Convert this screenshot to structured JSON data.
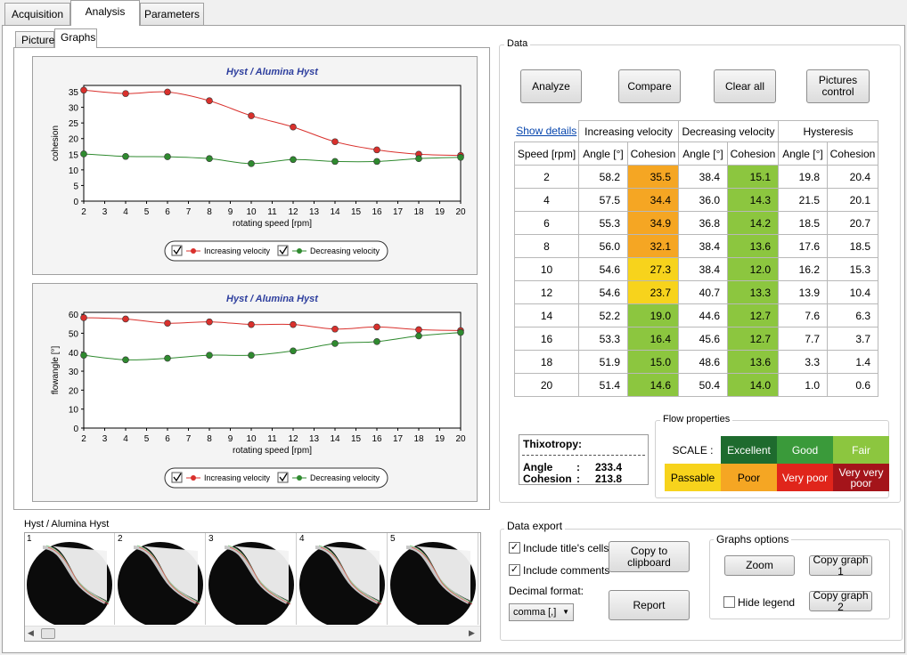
{
  "main_tabs": [
    "Acquisition",
    "Analysis",
    "Parameters"
  ],
  "sub_tabs": [
    "Picture",
    "Graphs"
  ],
  "graphs": [
    {
      "title": "Hyst / Alumina Hyst",
      "xlabel": "rotating speed [rpm]",
      "ylabel": "cohesion",
      "yticks": [
        "0",
        "5",
        "10",
        "15",
        "20",
        "25",
        "30",
        "35"
      ],
      "legend": [
        "Increasing velocity",
        "Decreasing velocity"
      ]
    },
    {
      "title": "Hyst / Alumina Hyst",
      "xlabel": "rotating speed [rpm]",
      "ylabel": "flowangle [°]",
      "yticks": [
        "0",
        "10",
        "20",
        "30",
        "40",
        "50",
        "60"
      ],
      "legend": [
        "Increasing velocity",
        "Decreasing velocity"
      ]
    }
  ],
  "chart_data": [
    {
      "type": "line",
      "title": "Hyst / Alumina Hyst",
      "xlabel": "rotating speed [rpm]",
      "ylabel": "cohesion",
      "x": [
        2,
        4,
        6,
        8,
        10,
        12,
        14,
        16,
        18,
        20
      ],
      "xlim": [
        2,
        20
      ],
      "ylim": [
        0,
        37
      ],
      "grid": false,
      "legend_position": "bottom",
      "series": [
        {
          "name": "Increasing velocity",
          "color": "#d9302c",
          "values": [
            35.5,
            34.4,
            34.9,
            32.1,
            27.3,
            23.7,
            19.0,
            16.4,
            15.0,
            14.6
          ]
        },
        {
          "name": "Decreasing velocity",
          "color": "#2f8a2f",
          "values": [
            15.1,
            14.3,
            14.2,
            13.6,
            12.0,
            13.3,
            12.7,
            12.7,
            13.6,
            14.0
          ]
        }
      ]
    },
    {
      "type": "line",
      "title": "Hyst / Alumina Hyst",
      "xlabel": "rotating speed [rpm]",
      "ylabel": "flowangle [°]",
      "x": [
        2,
        4,
        6,
        8,
        10,
        12,
        14,
        16,
        18,
        20
      ],
      "xlim": [
        2,
        20
      ],
      "ylim": [
        0,
        61
      ],
      "grid": false,
      "legend_position": "bottom",
      "series": [
        {
          "name": "Increasing velocity",
          "color": "#d9302c",
          "values": [
            58.2,
            57.5,
            55.3,
            56.0,
            54.6,
            54.6,
            52.2,
            53.3,
            51.9,
            51.4
          ]
        },
        {
          "name": "Decreasing velocity",
          "color": "#2f8a2f",
          "values": [
            38.4,
            36.0,
            36.8,
            38.4,
            38.4,
            40.7,
            44.6,
            45.6,
            48.6,
            50.4
          ]
        }
      ]
    }
  ],
  "xticks": [
    "2",
    "3",
    "4",
    "5",
    "6",
    "7",
    "8",
    "9",
    "10",
    "11",
    "12",
    "13",
    "14",
    "15",
    "16",
    "17",
    "18",
    "19",
    "20"
  ],
  "data_group": "Data",
  "buttons": {
    "analyze": "Analyze",
    "compare": "Compare",
    "clear_all": "Clear all",
    "pictures_control": "Pictures control",
    "copy_clipboard": "Copy to clipboard",
    "report": "Report",
    "zoom": "Zoom",
    "copy_graph_1": "Copy graph 1",
    "copy_graph_2": "Copy graph 2"
  },
  "table": {
    "show_details": "Show details",
    "groups": [
      "Increasing velocity",
      "Decreasing velocity",
      "Hysteresis"
    ],
    "columns": [
      "Speed [rpm]",
      "Angle [°]",
      "Cohesion",
      "Angle [°]",
      "Cohesion",
      "Angle [°]",
      "Cohesion"
    ],
    "rows": [
      [
        "2",
        "58.2",
        "35.5",
        "38.4",
        "15.1",
        "19.8",
        "20.4"
      ],
      [
        "4",
        "57.5",
        "34.4",
        "36.0",
        "14.3",
        "21.5",
        "20.1"
      ],
      [
        "6",
        "55.3",
        "34.9",
        "36.8",
        "14.2",
        "18.5",
        "20.7"
      ],
      [
        "8",
        "56.0",
        "32.1",
        "38.4",
        "13.6",
        "17.6",
        "18.5"
      ],
      [
        "10",
        "54.6",
        "27.3",
        "38.4",
        "12.0",
        "16.2",
        "15.3"
      ],
      [
        "12",
        "54.6",
        "23.7",
        "40.7",
        "13.3",
        "13.9",
        "10.4"
      ],
      [
        "14",
        "52.2",
        "19.0",
        "44.6",
        "12.7",
        "7.6",
        "6.3"
      ],
      [
        "16",
        "53.3",
        "16.4",
        "45.6",
        "12.7",
        "7.7",
        "3.7"
      ],
      [
        "18",
        "51.9",
        "15.0",
        "48.6",
        "13.6",
        "3.3",
        "1.4"
      ],
      [
        "20",
        "51.4",
        "14.6",
        "50.4",
        "14.0",
        "1.0",
        "0.6"
      ]
    ],
    "inc_cohesion_colors": [
      "#f5a623",
      "#f5a623",
      "#f5a623",
      "#f5a623",
      "#f7d31c",
      "#f7d31c",
      "#8cc63f",
      "#8cc63f",
      "#8cc63f",
      "#8cc63f"
    ],
    "dec_cohesion_color": "#8cc63f"
  },
  "thixotropy": {
    "title": "Thixotropy:",
    "angle_label": "Angle",
    "angle_value": "233.4",
    "cohesion_label": "Cohesion",
    "cohesion_value": "213.8",
    "separator": ":"
  },
  "flow_properties": {
    "title": "Flow properties",
    "scale_label": "SCALE :",
    "cells": [
      {
        "label": "Excellent",
        "color": "#1e6b2e",
        "text_color": "#ffffff"
      },
      {
        "label": "Good",
        "color": "#3a9a3a",
        "text_color": "#ffffff"
      },
      {
        "label": "Fair",
        "color": "#8cc63f",
        "text_color": "#ffffff"
      },
      {
        "label": "Passable",
        "color": "#f7d31c",
        "text_color": "#000000"
      },
      {
        "label": "Poor",
        "color": "#f5a623",
        "text_color": "#000000"
      },
      {
        "label": "Very poor",
        "color": "#e0251b",
        "text_color": "#ffffff"
      },
      {
        "label": "Very very poor",
        "color": "#a4141a",
        "text_color": "#ffffff"
      }
    ]
  },
  "pictures": {
    "title": "Hyst / Alumina Hyst",
    "numbers": [
      "1",
      "2",
      "3",
      "4",
      "5"
    ]
  },
  "export": {
    "title": "Data export",
    "include_titles": "Include title's cells",
    "include_comments": "Include comments",
    "decimal_format_label": "Decimal format:",
    "decimal_format_value": "comma [,]"
  },
  "graph_options": {
    "title": "Graphs options",
    "hide_legend": "Hide legend"
  }
}
